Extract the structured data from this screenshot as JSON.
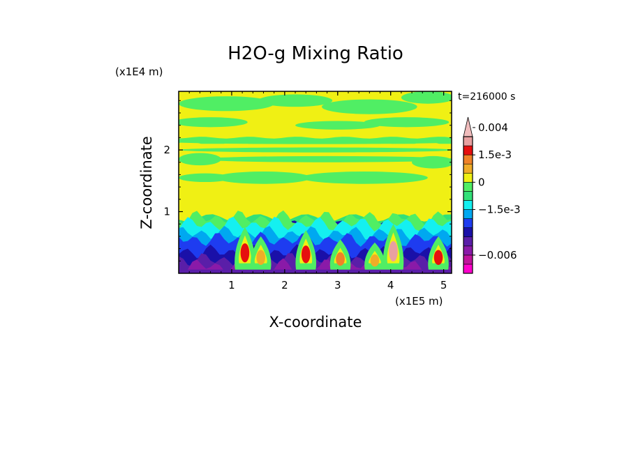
{
  "chart_data": {
    "type": "heatmap",
    "title": "H2O-g Mixing Ratio",
    "xlabel": "X-coordinate",
    "ylabel": "Z-coordinate",
    "x_scale_label": "(x1E5 m)",
    "y_scale_label": "(x1E4 m)",
    "time_label": "t=216000 s",
    "xlim": [
      0,
      5.15
    ],
    "ylim": [
      0,
      2.95
    ],
    "x_ticks": [
      1,
      2,
      3,
      4,
      5
    ],
    "y_ticks": [
      1,
      2
    ],
    "colorbar": {
      "labels": [
        "0.004",
        "1.5e-3",
        "0",
        "−1.5e-3",
        "−0.006"
      ],
      "label_values": [
        0.004,
        0.0015,
        0,
        -0.0015,
        -0.006
      ],
      "levels": [
        -0.009,
        -0.0075,
        -0.006,
        -0.0045,
        -0.003,
        -0.0025,
        -0.002,
        -0.0015,
        -0.001,
        -0.0005,
        0,
        0.0005,
        0.001,
        0.0015,
        0.002,
        0.003,
        0.004,
        0.005
      ],
      "colors": [
        "#ff00cc",
        "#c0149c",
        "#8a1aa8",
        "#5a1ea8",
        "#1a10a8",
        "#1e3cf0",
        "#00a8f0",
        "#14f0f0",
        "#32e078",
        "#50ee64",
        "#f0f014",
        "#f0ac28",
        "#f08228",
        "#e60f0f",
        "#e8a0a0",
        "#f0bcbc"
      ]
    },
    "bands": [
      {
        "z": [
          2.35,
          2.95
        ],
        "value": 0.0,
        "note": "upper layer, green patches"
      },
      {
        "z": [
          2.1,
          2.2
        ],
        "value": 0.0
      },
      {
        "z": [
          1.35,
          2.1
        ],
        "value": 0.0
      },
      {
        "z": [
          0.9,
          1.35
        ],
        "value": 0.0
      },
      {
        "z": [
          0.75,
          0.9
        ],
        "value": -0.0008
      },
      {
        "z": [
          0.35,
          0.75
        ],
        "value": -0.003
      },
      {
        "z": [
          0.0,
          0.35
        ],
        "value": -0.0065
      }
    ],
    "plumes": [
      {
        "x": 1.25,
        "z_top": 0.75,
        "value": 0.0015
      },
      {
        "x": 1.55,
        "z_top": 0.6,
        "value": 0.0005
      },
      {
        "x": 2.4,
        "z_top": 0.7,
        "value": 0.0015
      },
      {
        "x": 3.05,
        "z_top": 0.55,
        "value": 0.001
      },
      {
        "x": 3.7,
        "z_top": 0.5,
        "value": 0.0005
      },
      {
        "x": 4.05,
        "z_top": 0.8,
        "value": 0.002
      },
      {
        "x": 4.9,
        "z_top": 0.6,
        "value": 0.0015
      }
    ]
  }
}
